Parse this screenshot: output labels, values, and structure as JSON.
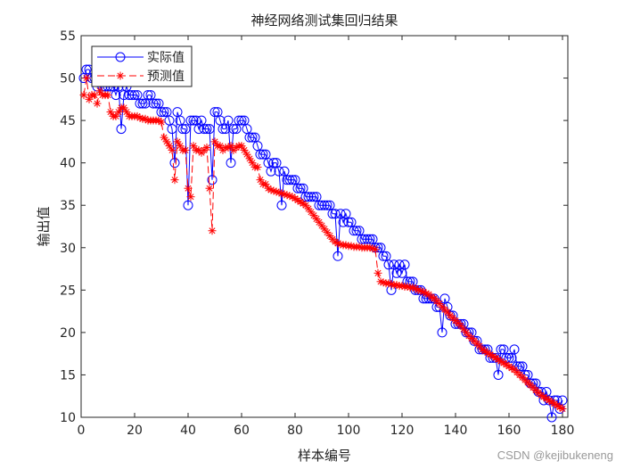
{
  "chart_data": {
    "type": "line",
    "title": "神经网络测试集回归结果",
    "xlabel": "样本编号",
    "ylabel": "输出值",
    "xlim": [
      0,
      182
    ],
    "ylim": [
      10,
      55
    ],
    "xticks": [
      0,
      20,
      40,
      60,
      80,
      100,
      120,
      140,
      160,
      180
    ],
    "yticks": [
      10,
      15,
      20,
      25,
      30,
      35,
      40,
      45,
      50,
      55
    ],
    "grid": false,
    "legend_position": "top-left",
    "series": [
      {
        "name": "实际值",
        "color": "#0000ff",
        "marker": "circle",
        "line": "solid",
        "values": [
          50,
          51,
          51,
          50,
          50,
          49,
          50,
          49,
          49,
          49,
          49,
          49,
          48,
          49,
          44,
          48,
          49,
          48,
          48,
          48,
          48,
          47,
          47,
          47,
          48,
          48,
          47,
          47,
          47,
          46,
          46,
          46,
          45,
          44,
          40,
          46,
          45,
          44,
          44,
          35,
          45,
          45,
          45,
          44,
          45,
          44,
          44,
          44,
          38,
          46,
          46,
          45,
          44,
          44,
          45,
          40,
          44,
          44,
          45,
          45,
          45,
          44,
          43,
          43,
          43,
          42,
          41,
          41,
          41,
          40,
          39,
          40,
          40,
          39,
          35,
          39,
          38,
          38,
          38,
          38,
          37,
          37,
          37,
          36,
          36,
          36,
          36,
          36,
          35,
          35,
          35,
          35,
          35,
          34,
          34,
          29,
          34,
          33,
          34,
          33,
          33,
          32,
          32,
          32,
          31,
          31,
          31,
          31,
          31,
          30,
          30,
          30,
          29,
          29,
          28,
          25,
          28,
          27,
          28,
          27,
          28,
          26,
          26,
          26,
          25,
          25,
          25,
          24,
          24,
          24,
          24,
          24,
          23,
          23,
          20,
          24,
          23,
          22,
          22,
          21,
          21,
          21,
          21,
          20,
          20,
          20,
          19,
          19,
          18,
          18,
          18,
          18,
          17,
          17,
          17,
          15,
          18,
          18,
          17,
          17,
          17,
          18,
          16,
          16,
          16,
          15,
          15,
          14,
          14,
          14,
          13,
          13,
          12,
          13,
          12,
          10,
          12,
          12,
          11,
          12
        ]
      },
      {
        "name": "预测值",
        "color": "#ff0000",
        "marker": "asterisk",
        "line": "dashed",
        "values": [
          48,
          50,
          47.5,
          48,
          48,
          47,
          48.5,
          48,
          48,
          48,
          46,
          45.5,
          45.5,
          46,
          46.5,
          46.5,
          46,
          45.5,
          45.5,
          45.5,
          45.5,
          45.3,
          45.2,
          45.2,
          45,
          45,
          45,
          45,
          45,
          44.8,
          43,
          42.5,
          42,
          41.5,
          38,
          42.5,
          42,
          41.5,
          41.5,
          37,
          36,
          42,
          41.5,
          41.5,
          41.2,
          41.5,
          41.8,
          37,
          32,
          42.5,
          42,
          42,
          41.5,
          41.8,
          41.8,
          42,
          41.5,
          41.8,
          42,
          42,
          41.5,
          41,
          40.5,
          40,
          39.5,
          39.5,
          38,
          37.5,
          37.5,
          37,
          36.8,
          36.7,
          36.6,
          36.5,
          36.4,
          36.3,
          36.2,
          36.1,
          36,
          35.8,
          35.6,
          35.4,
          35.2,
          35,
          34.6,
          34.2,
          33.8,
          33.4,
          33,
          32.6,
          32.2,
          31.8,
          31.4,
          31,
          30.7,
          30.5,
          30.4,
          30.3,
          30.3,
          30.2,
          30.2,
          30.1,
          30.1,
          30.1,
          30,
          30,
          30,
          30,
          29.9,
          29.8,
          27,
          26,
          25.9,
          25.8,
          25.8,
          25.7,
          25.6,
          25.6,
          25.5,
          25.5,
          25.4,
          25.4,
          25.3,
          25.3,
          25.2,
          25,
          24.9,
          24.8,
          24.6,
          24.5,
          24.2,
          24,
          23.7,
          23.4,
          23,
          22.7,
          22.4,
          22,
          21.7,
          21.4,
          21.1,
          20.8,
          20.4,
          20,
          19.6,
          19.3,
          19,
          18.7,
          18.4,
          18,
          17.8,
          17.6,
          17.4,
          17.2,
          17,
          16.8,
          16.6,
          16.4,
          16.2,
          16,
          15.8,
          15.6,
          15.3,
          15,
          14.7,
          14.4,
          14.1,
          13.8,
          13.5,
          13.2,
          12.9,
          12.6,
          12.4,
          12.2,
          12,
          11.8,
          11.6,
          11.4,
          11.2,
          11
        ]
      }
    ]
  },
  "watermark": "CSDN @kejibukeneng"
}
